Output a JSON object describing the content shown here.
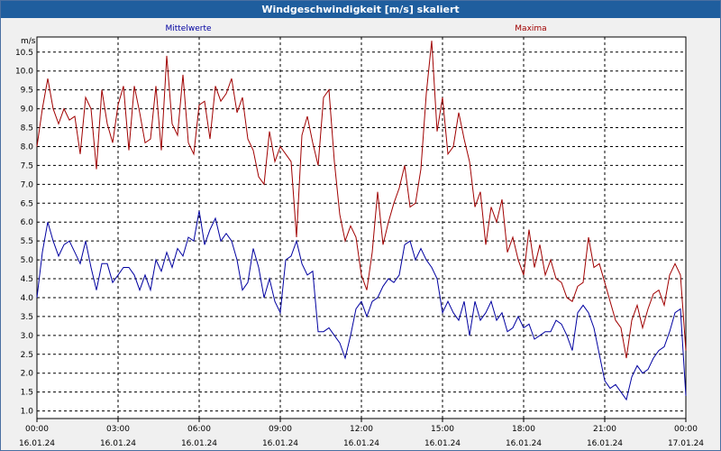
{
  "window": {
    "title": "Windgeschwindigkeit [m/s] skaliert"
  },
  "colors": {
    "mean": "#0000a0",
    "max": "#a00000",
    "grid": "#000000",
    "background": "#ffffff"
  },
  "chart_data": {
    "type": "line",
    "title": "Windgeschwindigkeit [m/s] skaliert",
    "ylabel": "m/s",
    "ylim": [
      0.8,
      10.9
    ],
    "xlim": [
      0,
      24
    ],
    "grid": true,
    "y_ticks": [
      "1.0",
      "1.5",
      "2.0",
      "2.5",
      "3.0",
      "3.5",
      "4.0",
      "4.5",
      "5.0",
      "5.5",
      "6.0",
      "6.5",
      "7.0",
      "7.5",
      "8.0",
      "8.5",
      "9.0",
      "9.5",
      "10.0",
      "10.5"
    ],
    "x_ticks": [
      {
        "time": "00:00",
        "date": "16.01.24"
      },
      {
        "time": "03:00",
        "date": "16.01.24"
      },
      {
        "time": "06:00",
        "date": "16.01.24"
      },
      {
        "time": "09:00",
        "date": "16.01.24"
      },
      {
        "time": "12:00",
        "date": "16.01.24"
      },
      {
        "time": "15:00",
        "date": "16.01.24"
      },
      {
        "time": "18:00",
        "date": "16.01.24"
      },
      {
        "time": "21:00",
        "date": "16.01.24"
      },
      {
        "time": "00:00",
        "date": "17.01.24"
      }
    ],
    "series": [
      {
        "name": "Mittelwerte",
        "color": "#0000a0",
        "points": [
          [
            0.0,
            4.0
          ],
          [
            0.2,
            5.2
          ],
          [
            0.4,
            6.0
          ],
          [
            0.6,
            5.5
          ],
          [
            0.8,
            5.1
          ],
          [
            1.0,
            5.4
          ],
          [
            1.2,
            5.5
          ],
          [
            1.4,
            5.2
          ],
          [
            1.6,
            4.9
          ],
          [
            1.8,
            5.5
          ],
          [
            2.0,
            4.8
          ],
          [
            2.2,
            4.2
          ],
          [
            2.4,
            4.9
          ],
          [
            2.6,
            4.9
          ],
          [
            2.8,
            4.4
          ],
          [
            3.0,
            4.6
          ],
          [
            3.2,
            4.8
          ],
          [
            3.4,
            4.8
          ],
          [
            3.6,
            4.6
          ],
          [
            3.8,
            4.2
          ],
          [
            4.0,
            4.6
          ],
          [
            4.2,
            4.2
          ],
          [
            4.4,
            5.0
          ],
          [
            4.6,
            4.7
          ],
          [
            4.8,
            5.2
          ],
          [
            5.0,
            4.8
          ],
          [
            5.2,
            5.3
          ],
          [
            5.4,
            5.1
          ],
          [
            5.6,
            5.6
          ],
          [
            5.8,
            5.5
          ],
          [
            6.0,
            6.3
          ],
          [
            6.2,
            5.4
          ],
          [
            6.4,
            5.8
          ],
          [
            6.6,
            6.1
          ],
          [
            6.8,
            5.5
          ],
          [
            7.0,
            5.7
          ],
          [
            7.2,
            5.5
          ],
          [
            7.4,
            5.0
          ],
          [
            7.6,
            4.2
          ],
          [
            7.8,
            4.4
          ],
          [
            8.0,
            5.3
          ],
          [
            8.2,
            4.8
          ],
          [
            8.4,
            4.0
          ],
          [
            8.6,
            4.5
          ],
          [
            8.8,
            3.9
          ],
          [
            9.0,
            3.6
          ],
          [
            9.2,
            5.0
          ],
          [
            9.4,
            5.1
          ],
          [
            9.6,
            5.5
          ],
          [
            9.8,
            4.9
          ],
          [
            10.0,
            4.6
          ],
          [
            10.2,
            4.7
          ],
          [
            10.4,
            3.1
          ],
          [
            10.6,
            3.1
          ],
          [
            10.8,
            3.2
          ],
          [
            11.0,
            3.0
          ],
          [
            11.2,
            2.8
          ],
          [
            11.4,
            2.4
          ],
          [
            11.6,
            3.0
          ],
          [
            11.8,
            3.7
          ],
          [
            12.0,
            3.9
          ],
          [
            12.2,
            3.5
          ],
          [
            12.4,
            3.9
          ],
          [
            12.6,
            4.0
          ],
          [
            12.8,
            4.3
          ],
          [
            13.0,
            4.5
          ],
          [
            13.2,
            4.4
          ],
          [
            13.4,
            4.6
          ],
          [
            13.6,
            5.4
          ],
          [
            13.8,
            5.5
          ],
          [
            14.0,
            5.0
          ],
          [
            14.2,
            5.3
          ],
          [
            14.4,
            5.0
          ],
          [
            14.6,
            4.8
          ],
          [
            14.8,
            4.5
          ],
          [
            15.0,
            3.6
          ],
          [
            15.2,
            3.9
          ],
          [
            15.4,
            3.6
          ],
          [
            15.6,
            3.4
          ],
          [
            15.8,
            3.9
          ],
          [
            16.0,
            3.0
          ],
          [
            16.2,
            3.9
          ],
          [
            16.4,
            3.4
          ],
          [
            16.6,
            3.6
          ],
          [
            16.8,
            3.9
          ],
          [
            17.0,
            3.4
          ],
          [
            17.2,
            3.6
          ],
          [
            17.4,
            3.1
          ],
          [
            17.6,
            3.2
          ],
          [
            17.8,
            3.5
          ],
          [
            18.0,
            3.2
          ],
          [
            18.2,
            3.3
          ],
          [
            18.4,
            2.9
          ],
          [
            18.6,
            3.0
          ],
          [
            18.8,
            3.1
          ],
          [
            19.0,
            3.1
          ],
          [
            19.2,
            3.4
          ],
          [
            19.4,
            3.3
          ],
          [
            19.6,
            3.0
          ],
          [
            19.8,
            2.6
          ],
          [
            20.0,
            3.6
          ],
          [
            20.2,
            3.8
          ],
          [
            20.4,
            3.6
          ],
          [
            20.6,
            3.2
          ],
          [
            20.8,
            2.5
          ],
          [
            21.0,
            1.8
          ],
          [
            21.2,
            1.6
          ],
          [
            21.4,
            1.7
          ],
          [
            21.6,
            1.5
          ],
          [
            21.8,
            1.3
          ],
          [
            22.0,
            1.9
          ],
          [
            22.2,
            2.2
          ],
          [
            22.4,
            2.0
          ],
          [
            22.6,
            2.1
          ],
          [
            22.8,
            2.4
          ],
          [
            23.0,
            2.6
          ],
          [
            23.2,
            2.7
          ],
          [
            23.4,
            3.1
          ],
          [
            23.6,
            3.6
          ],
          [
            23.8,
            3.7
          ],
          [
            24.0,
            1.4
          ]
        ]
      },
      {
        "name": "Maxima",
        "color": "#a00000",
        "points": [
          [
            0.0,
            8.0
          ],
          [
            0.2,
            9.0
          ],
          [
            0.4,
            9.8
          ],
          [
            0.6,
            9.0
          ],
          [
            0.8,
            8.6
          ],
          [
            1.0,
            9.0
          ],
          [
            1.2,
            8.7
          ],
          [
            1.4,
            8.8
          ],
          [
            1.6,
            7.8
          ],
          [
            1.8,
            9.3
          ],
          [
            2.0,
            9.0
          ],
          [
            2.2,
            7.4
          ],
          [
            2.4,
            9.5
          ],
          [
            2.6,
            8.6
          ],
          [
            2.8,
            8.1
          ],
          [
            3.0,
            9.1
          ],
          [
            3.2,
            9.6
          ],
          [
            3.4,
            7.9
          ],
          [
            3.6,
            9.6
          ],
          [
            3.8,
            8.9
          ],
          [
            4.0,
            8.1
          ],
          [
            4.2,
            8.2
          ],
          [
            4.4,
            9.6
          ],
          [
            4.6,
            7.9
          ],
          [
            4.8,
            10.4
          ],
          [
            5.0,
            8.6
          ],
          [
            5.2,
            8.3
          ],
          [
            5.4,
            9.9
          ],
          [
            5.6,
            8.1
          ],
          [
            5.8,
            7.8
          ],
          [
            6.0,
            9.1
          ],
          [
            6.2,
            9.2
          ],
          [
            6.4,
            8.2
          ],
          [
            6.6,
            9.6
          ],
          [
            6.8,
            9.2
          ],
          [
            7.0,
            9.4
          ],
          [
            7.2,
            9.8
          ],
          [
            7.4,
            8.9
          ],
          [
            7.6,
            9.3
          ],
          [
            7.8,
            8.2
          ],
          [
            8.0,
            7.9
          ],
          [
            8.2,
            7.2
          ],
          [
            8.4,
            7.0
          ],
          [
            8.6,
            8.4
          ],
          [
            8.8,
            7.6
          ],
          [
            9.0,
            8.0
          ],
          [
            9.2,
            7.8
          ],
          [
            9.4,
            7.6
          ],
          [
            9.6,
            5.6
          ],
          [
            9.8,
            8.3
          ],
          [
            10.0,
            8.8
          ],
          [
            10.2,
            8.1
          ],
          [
            10.4,
            7.5
          ],
          [
            10.6,
            9.3
          ],
          [
            10.8,
            9.5
          ],
          [
            11.0,
            7.6
          ],
          [
            11.2,
            6.2
          ],
          [
            11.4,
            5.5
          ],
          [
            11.6,
            5.9
          ],
          [
            11.8,
            5.6
          ],
          [
            12.0,
            4.6
          ],
          [
            12.2,
            4.2
          ],
          [
            12.4,
            5.2
          ],
          [
            12.6,
            6.8
          ],
          [
            12.8,
            5.4
          ],
          [
            13.0,
            6.0
          ],
          [
            13.2,
            6.5
          ],
          [
            13.4,
            6.9
          ],
          [
            13.6,
            7.5
          ],
          [
            13.8,
            6.4
          ],
          [
            14.0,
            6.5
          ],
          [
            14.2,
            7.4
          ],
          [
            14.4,
            9.4
          ],
          [
            14.6,
            10.8
          ],
          [
            14.8,
            8.4
          ],
          [
            15.0,
            9.3
          ],
          [
            15.2,
            7.8
          ],
          [
            15.4,
            8.0
          ],
          [
            15.6,
            8.9
          ],
          [
            15.8,
            8.2
          ],
          [
            16.0,
            7.6
          ],
          [
            16.2,
            6.4
          ],
          [
            16.4,
            6.8
          ],
          [
            16.6,
            5.4
          ],
          [
            16.8,
            6.4
          ],
          [
            17.0,
            6.0
          ],
          [
            17.2,
            6.6
          ],
          [
            17.4,
            5.2
          ],
          [
            17.6,
            5.6
          ],
          [
            17.8,
            5.0
          ],
          [
            18.0,
            4.6
          ],
          [
            18.2,
            5.8
          ],
          [
            18.4,
            4.8
          ],
          [
            18.6,
            5.4
          ],
          [
            18.8,
            4.6
          ],
          [
            19.0,
            5.0
          ],
          [
            19.2,
            4.5
          ],
          [
            19.4,
            4.4
          ],
          [
            19.6,
            4.0
          ],
          [
            19.8,
            3.9
          ],
          [
            20.0,
            4.3
          ],
          [
            20.2,
            4.4
          ],
          [
            20.4,
            5.6
          ],
          [
            20.6,
            4.8
          ],
          [
            20.8,
            4.9
          ],
          [
            21.0,
            4.4
          ],
          [
            21.2,
            3.9
          ],
          [
            21.4,
            3.4
          ],
          [
            21.6,
            3.2
          ],
          [
            21.8,
            2.4
          ],
          [
            22.0,
            3.4
          ],
          [
            22.2,
            3.8
          ],
          [
            22.4,
            3.2
          ],
          [
            22.6,
            3.7
          ],
          [
            22.8,
            4.1
          ],
          [
            23.0,
            4.2
          ],
          [
            23.2,
            3.8
          ],
          [
            23.4,
            4.6
          ],
          [
            23.6,
            4.9
          ],
          [
            23.8,
            4.6
          ],
          [
            24.0,
            2.6
          ]
        ]
      }
    ]
  }
}
